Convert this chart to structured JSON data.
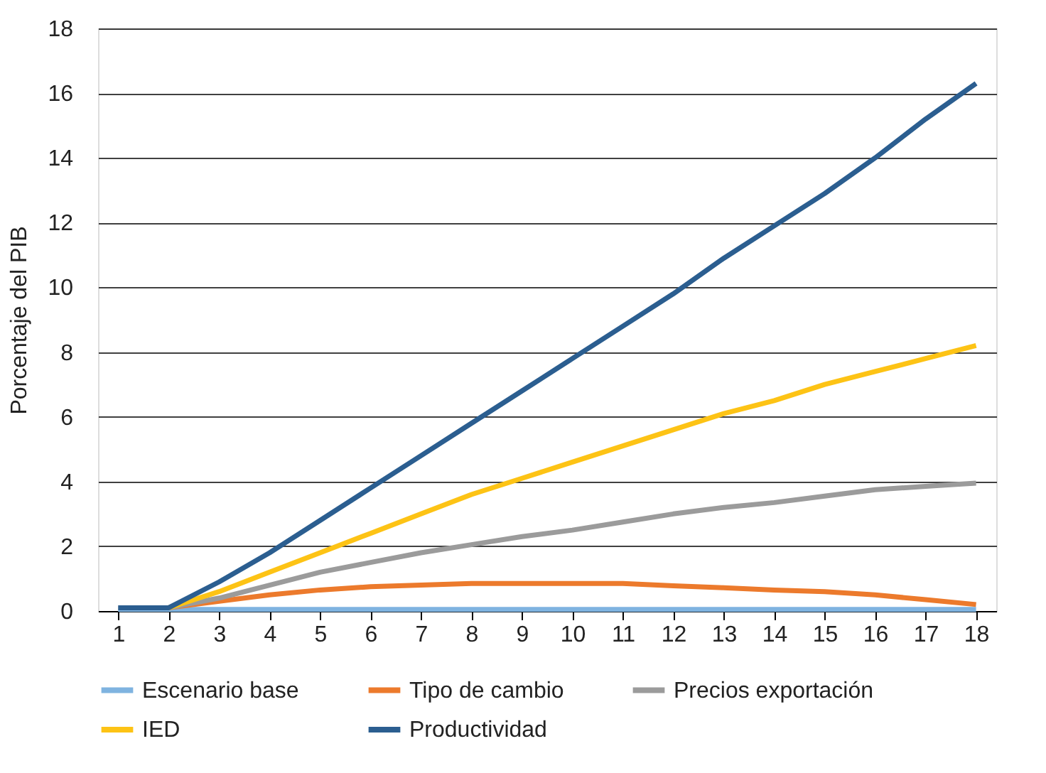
{
  "chart_data": {
    "type": "line",
    "ylabel": "Porcentaje del PIB",
    "x": [
      1,
      2,
      3,
      4,
      5,
      6,
      7,
      8,
      9,
      10,
      11,
      12,
      13,
      14,
      15,
      16,
      17,
      18
    ],
    "xlim": [
      0.6,
      18.4
    ],
    "xticks": [
      1,
      2,
      3,
      4,
      5,
      6,
      7,
      8,
      9,
      10,
      11,
      12,
      13,
      14,
      15,
      16,
      17,
      18
    ],
    "ylim": [
      0,
      18
    ],
    "yticks": [
      0,
      2,
      4,
      6,
      8,
      10,
      12,
      14,
      16,
      18
    ],
    "grid": "y",
    "legend": "bottom",
    "marker": "none",
    "line_style": "solid",
    "series": [
      {
        "name": "Escenario base",
        "color": "#7fb3e0",
        "values": [
          0.05,
          0.05,
          0.05,
          0.05,
          0.05,
          0.05,
          0.05,
          0.05,
          0.05,
          0.05,
          0.05,
          0.05,
          0.05,
          0.05,
          0.05,
          0.05,
          0.05,
          0.05
        ]
      },
      {
        "name": "Tipo de cambio",
        "color": "#ec7a2c",
        "values": [
          null,
          0.1,
          0.3,
          0.5,
          0.65,
          0.75,
          0.8,
          0.85,
          0.85,
          0.85,
          0.85,
          0.78,
          0.72,
          0.65,
          0.6,
          0.5,
          0.35,
          0.2
        ]
      },
      {
        "name": "Precios exportación",
        "color": "#9b9b9b",
        "values": [
          0.1,
          0.1,
          0.4,
          0.8,
          1.2,
          1.5,
          1.8,
          2.05,
          2.3,
          2.5,
          2.75,
          3.0,
          3.2,
          3.35,
          3.55,
          3.75,
          3.85,
          3.95
        ]
      },
      {
        "name": "IED",
        "color": "#fdc315",
        "values": [
          null,
          0.1,
          0.6,
          1.2,
          1.8,
          2.4,
          3.0,
          3.6,
          4.1,
          4.6,
          5.1,
          5.6,
          6.1,
          6.5,
          7.0,
          7.4,
          7.8,
          8.2
        ]
      },
      {
        "name": "Productividad",
        "color": "#2b5e90",
        "values": [
          0.1,
          0.1,
          0.9,
          1.8,
          2.8,
          3.8,
          4.8,
          5.8,
          6.8,
          7.8,
          8.8,
          9.8,
          10.9,
          11.9,
          12.9,
          14.0,
          15.2,
          16.3
        ]
      }
    ]
  }
}
